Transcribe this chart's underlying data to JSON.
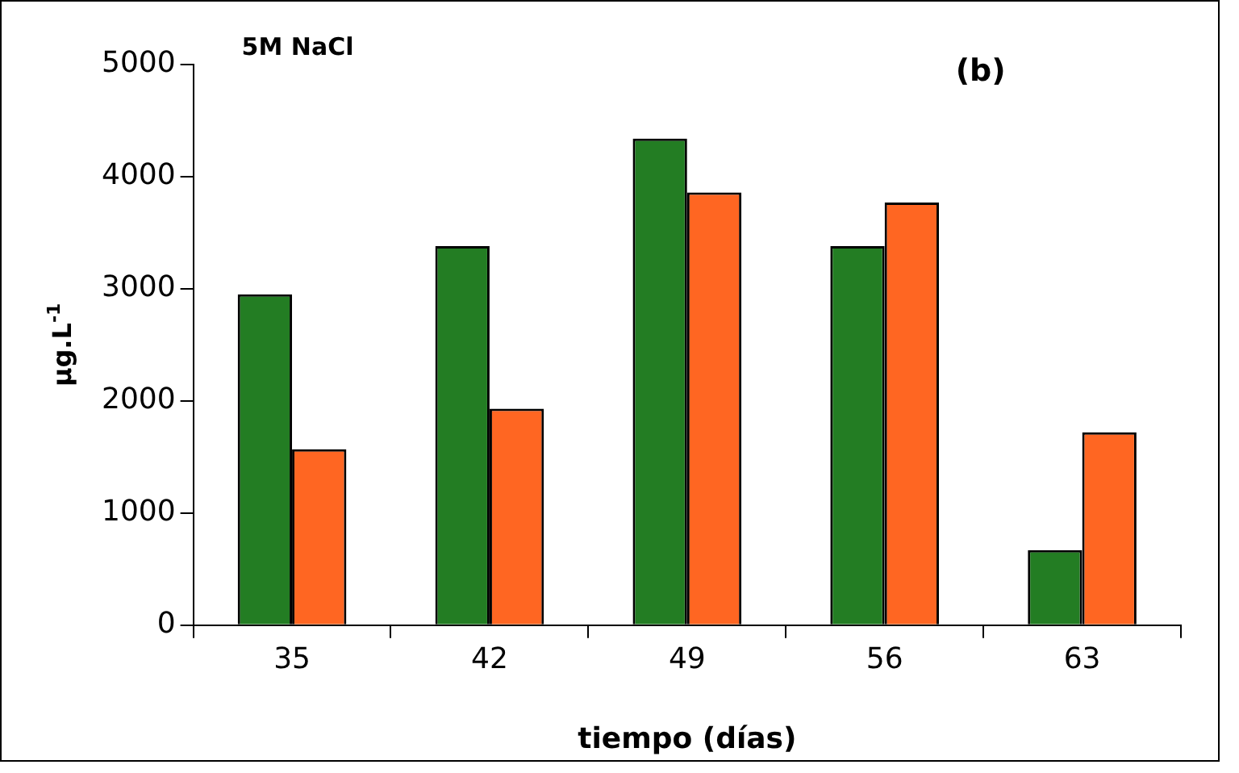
{
  "chart_data": {
    "type": "bar",
    "title": "5M NaCl",
    "xlabel": "tiempo (días)",
    "ylabel": "µg.L$^{-1}$",
    "annotations": [
      "(b)"
    ],
    "categories": [
      "35",
      "42",
      "49",
      "56",
      "63"
    ],
    "series": [
      {
        "color": "#237d23",
        "values": [
          2950,
          3380,
          4340,
          3380,
          670
        ]
      },
      {
        "color": "#ff6622",
        "values": [
          1570,
          1930,
          3860,
          3770,
          1720
        ]
      }
    ],
    "ylim": [
      0,
      5000
    ],
    "yticks": [
      0,
      1000,
      2000,
      3000,
      4000,
      5000
    ],
    "grid": false,
    "legend": false
  }
}
